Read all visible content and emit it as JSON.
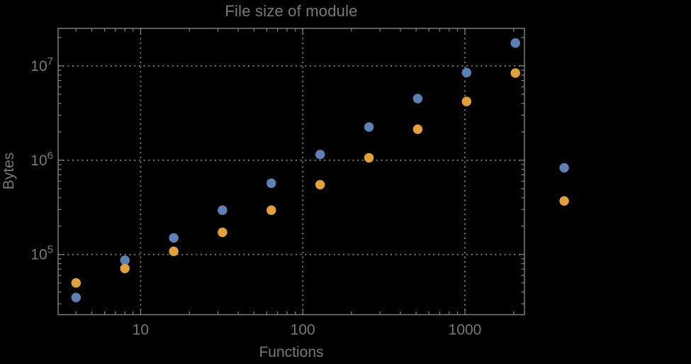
{
  "chart": {
    "title": "File size of module",
    "xlabel": "Functions",
    "ylabel": "Bytes"
  },
  "colors": {
    "background": "#000000",
    "frame": "#828282",
    "grid": "#828282",
    "tick_label": "#787878",
    "title": "#787878",
    "axis_label": "#787878",
    "series_blue": "#5e81b5",
    "series_orange": "#e3a13c"
  },
  "chart_data": {
    "type": "scatter",
    "title": "File size of module",
    "xlabel": "Functions",
    "ylabel": "Bytes",
    "x_scale": "log",
    "y_scale": "log",
    "xlim": [
      3.1,
      2330
    ],
    "ylim": [
      23000,
      25000000
    ],
    "grid": true,
    "grid_style": "dotted",
    "legend": "none",
    "clip_points": false,
    "marker_size": 13.4,
    "x": [
      4,
      8,
      16,
      32,
      64,
      128,
      256,
      512,
      1024,
      2048,
      4096
    ],
    "series": [
      {
        "name": "series-1-blue",
        "color": "#5e81b5",
        "values": [
          35000,
          87000,
          150000,
          295000,
          570000,
          1150000,
          2250000,
          4500000,
          8500000,
          17500000,
          830000
        ]
      },
      {
        "name": "series-2-orange",
        "color": "#e3a13c",
        "values": [
          50000,
          71000,
          108000,
          172000,
          295000,
          550000,
          1060000,
          2130000,
          4200000,
          8400000,
          370000
        ]
      }
    ],
    "x_ticks": [
      {
        "value": 10,
        "label": "10"
      },
      {
        "value": 100,
        "label": "100"
      },
      {
        "value": 1000,
        "label": "1000"
      }
    ],
    "y_ticks": [
      {
        "value": 100000,
        "base": "10",
        "exp": "5"
      },
      {
        "value": 1000000,
        "base": "10",
        "exp": "6"
      },
      {
        "value": 10000000,
        "base": "10",
        "exp": "7"
      }
    ]
  }
}
